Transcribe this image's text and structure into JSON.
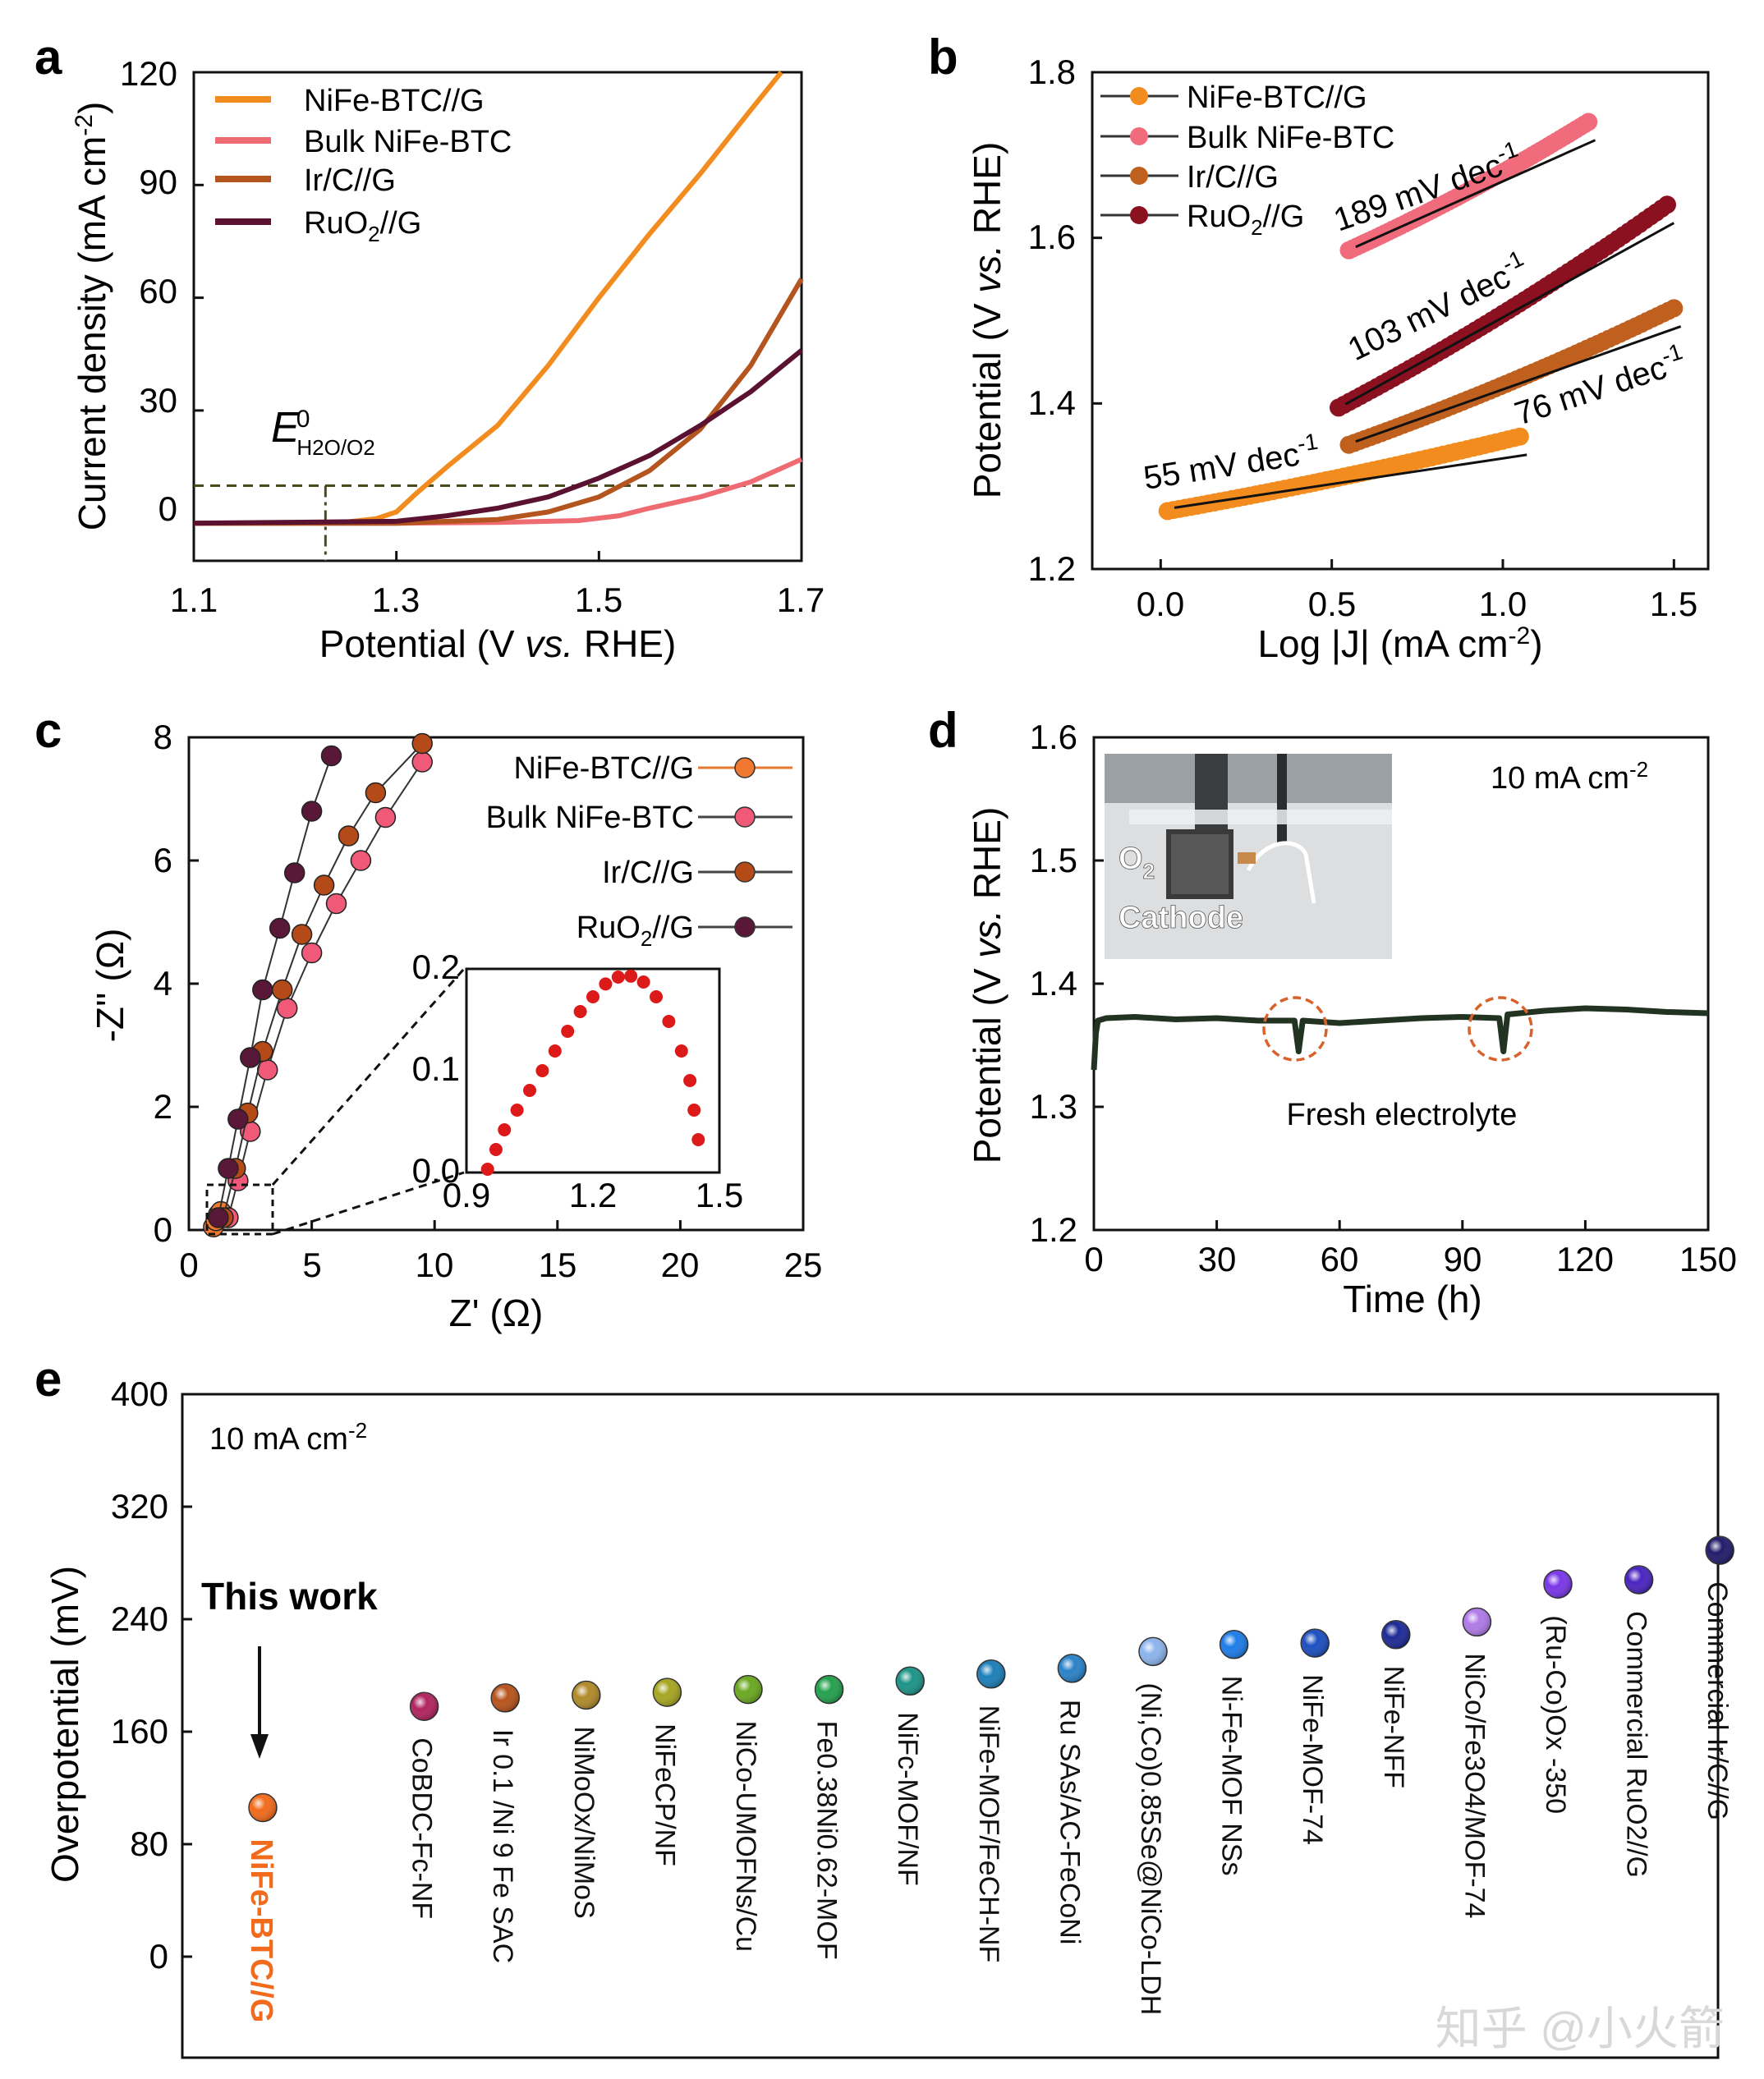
{
  "watermark": "知乎 @小火箭",
  "chart_data": [
    {
      "panel": "a",
      "type": "line",
      "xlabel": "Potential (V vs. RHE)",
      "ylabel": "Current density (mA cm-2)",
      "xlim": [
        1.1,
        1.7
      ],
      "ylim": [
        -10,
        120
      ],
      "xticks": [
        1.1,
        1.3,
        1.5,
        1.7
      ],
      "yticks": [
        0,
        30,
        60,
        90,
        120
      ],
      "reference": {
        "label": "E0 H2O/O2",
        "x": 1.23,
        "y": 10
      },
      "series": [
        {
          "name": "NiFe-BTC//G",
          "color": "#f28c1e",
          "x": [
            1.1,
            1.2,
            1.25,
            1.28,
            1.3,
            1.32,
            1.35,
            1.4,
            1.45,
            1.5,
            1.55,
            1.6,
            1.65,
            1.68
          ],
          "y": [
            0,
            0,
            0.3,
            1.2,
            3,
            8,
            15,
            26,
            42,
            60,
            77,
            93,
            110,
            120
          ]
        },
        {
          "name": "Bulk NiFe-BTC",
          "color": "#ee6b72",
          "x": [
            1.1,
            1.3,
            1.4,
            1.48,
            1.52,
            1.55,
            1.6,
            1.65,
            1.7
          ],
          "y": [
            0,
            0,
            0.2,
            0.7,
            2,
            4,
            7,
            11,
            17
          ]
        },
        {
          "name": "Ir/C//G",
          "color": "#b4541e",
          "x": [
            1.1,
            1.3,
            1.4,
            1.45,
            1.5,
            1.55,
            1.6,
            1.65,
            1.7
          ],
          "y": [
            0,
            0,
            1,
            3,
            7,
            14,
            25,
            42,
            65
          ]
        },
        {
          "name": "RuO2//G",
          "color": "#5a1230",
          "x": [
            1.1,
            1.3,
            1.35,
            1.4,
            1.45,
            1.5,
            1.55,
            1.6,
            1.65,
            1.7
          ],
          "y": [
            0,
            0.5,
            2,
            4,
            7,
            12,
            18,
            26,
            35,
            46
          ]
        }
      ]
    },
    {
      "panel": "b",
      "type": "scatter",
      "xlabel": "Log |J| (mA cm-2)",
      "ylabel": "Potential (V vs. RHE)",
      "xlim": [
        -0.2,
        1.6
      ],
      "ylim": [
        1.2,
        1.8
      ],
      "xticks": [
        0.0,
        0.5,
        1.0,
        1.5
      ],
      "yticks": [
        1.2,
        1.4,
        1.6,
        1.8
      ],
      "series": [
        {
          "name": "NiFe-BTC//G",
          "color": "#f28c1e",
          "x_start": 0.02,
          "x_end": 1.05,
          "y_start": 1.27,
          "y_end": 1.36,
          "slope": "55 mV dec-1"
        },
        {
          "name": "Bulk NiFe-BTC",
          "color": "#f06b7c",
          "x_start": 0.55,
          "x_end": 1.25,
          "y_start": 1.585,
          "y_end": 1.74,
          "slope": "189 mV dec-1"
        },
        {
          "name": "Ir/C//G",
          "color": "#c0601e",
          "x_start": 0.55,
          "x_end": 1.5,
          "y_start": 1.35,
          "y_end": 1.515,
          "slope": "76 mV dec-1"
        },
        {
          "name": "RuO2//G",
          "color": "#8b1020",
          "x_start": 0.52,
          "x_end": 1.48,
          "y_start": 1.395,
          "y_end": 1.64,
          "slope": "103 mV dec-1"
        }
      ]
    },
    {
      "panel": "c",
      "type": "scatter",
      "xlabel": "Z' (Ω)",
      "ylabel": "-Z'' (Ω)",
      "xlim": [
        0,
        25
      ],
      "ylim": [
        0,
        8
      ],
      "xticks": [
        0,
        5,
        10,
        15,
        20,
        25
      ],
      "yticks": [
        0,
        2,
        4,
        6,
        8
      ],
      "series": [
        {
          "name": "NiFe-BTC//G",
          "color": "#f07830",
          "x": [
            1.0,
            1.1,
            1.2,
            1.3
          ],
          "y": [
            0.05,
            0.15,
            0.25,
            0.3
          ]
        },
        {
          "name": "Bulk NiFe-BTC",
          "color": "#f05a78",
          "x": [
            1.6,
            2.0,
            2.5,
            3.2,
            4.0,
            5.0,
            6.0,
            7.0,
            8.0,
            9.5
          ],
          "y": [
            0.2,
            0.8,
            1.6,
            2.6,
            3.6,
            4.5,
            5.3,
            6.0,
            6.7,
            7.6
          ]
        },
        {
          "name": "Ir/C//G",
          "color": "#b44a18",
          "x": [
            1.4,
            1.9,
            2.4,
            3.0,
            3.8,
            4.6,
            5.5,
            6.5,
            7.6,
            9.5
          ],
          "y": [
            0.2,
            1.0,
            1.9,
            2.9,
            3.9,
            4.8,
            5.6,
            6.4,
            7.1,
            7.9
          ]
        },
        {
          "name": "RuO2//G",
          "color": "#5a1838",
          "x": [
            1.2,
            1.6,
            2.0,
            2.5,
            3.0,
            3.7,
            4.3,
            5.0,
            5.8
          ],
          "y": [
            0.2,
            1.0,
            1.8,
            2.8,
            3.9,
            4.9,
            5.8,
            6.8,
            7.7
          ]
        }
      ],
      "inset": {
        "xlim": [
          0.9,
          1.5
        ],
        "ylim": [
          0,
          0.2
        ],
        "xticks": [
          0.9,
          1.2,
          1.5
        ],
        "yticks": [
          0.0,
          0.1,
          0.2
        ],
        "color": "#dd1a1a",
        "x": [
          0.95,
          0.97,
          0.99,
          1.02,
          1.05,
          1.08,
          1.11,
          1.14,
          1.17,
          1.2,
          1.23,
          1.26,
          1.29,
          1.32,
          1.35,
          1.38,
          1.41,
          1.43,
          1.44,
          1.45
        ],
        "y": [
          0.0,
          0.02,
          0.04,
          0.06,
          0.08,
          0.1,
          0.12,
          0.14,
          0.16,
          0.175,
          0.188,
          0.195,
          0.196,
          0.19,
          0.175,
          0.15,
          0.12,
          0.09,
          0.06,
          0.03
        ]
      }
    },
    {
      "panel": "d",
      "type": "line",
      "xlabel": "Time (h)",
      "ylabel": "Potential (V vs. RHE)",
      "xlim": [
        0,
        150
      ],
      "ylim": [
        1.2,
        1.6
      ],
      "xticks": [
        0,
        30,
        60,
        90,
        120,
        150
      ],
      "yticks": [
        1.2,
        1.3,
        1.4,
        1.5,
        1.6
      ],
      "condition": "10 mA cm-2",
      "annotation": "Fresh electrolyte",
      "photo_labels": [
        "O2",
        "Cathode"
      ],
      "series": [
        {
          "name": "",
          "color": "#223322",
          "x": [
            0,
            0.5,
            1,
            3,
            10,
            20,
            30,
            40,
            49,
            50,
            51,
            60,
            70,
            80,
            90,
            99,
            100,
            101,
            110,
            120,
            130,
            140,
            150
          ],
          "y": [
            1.33,
            1.36,
            1.37,
            1.372,
            1.373,
            1.371,
            1.372,
            1.37,
            1.37,
            1.345,
            1.37,
            1.368,
            1.37,
            1.372,
            1.373,
            1.372,
            1.345,
            1.375,
            1.378,
            1.38,
            1.379,
            1.377,
            1.376
          ]
        }
      ]
    },
    {
      "panel": "e",
      "type": "scatter",
      "ylabel": "Overpotential (mV)",
      "ylim": [
        -40,
        400
      ],
      "yticks": [
        0,
        80,
        160,
        240,
        320,
        400
      ],
      "condition": "10 mA cm-2",
      "highlight_label": "This work",
      "points": [
        {
          "label": "NiFe-BTC//G",
          "value": 106,
          "color": "#f26a1b"
        },
        {
          "label": "CoBDC-Fc-NF",
          "value": 178,
          "color": "#b1245e"
        },
        {
          "label": "Ir 0.1 /Ni 9 Fe SAC",
          "value": 184,
          "color": "#b8531c"
        },
        {
          "label": "NiMoOx/NiMoS",
          "value": 186,
          "color": "#b08a2a"
        },
        {
          "label": "NiFeCP/NF",
          "value": 188,
          "color": "#a6a620"
        },
        {
          "label": "NiCo-UMOFNs/Cu",
          "value": 190,
          "color": "#6aa820"
        },
        {
          "label": "Fe0.38Ni0.62-MOF",
          "value": 190,
          "color": "#24a04e"
        },
        {
          "label": "NiFc-MOF/NF",
          "value": 196,
          "color": "#1c9488"
        },
        {
          "label": "NiFe-MOF/FeCH-NF",
          "value": 201,
          "color": "#1c7fb8"
        },
        {
          "label": "Ru SAs/AC-FeCoNi",
          "value": 205,
          "color": "#2a82c8"
        },
        {
          "label": "(Ni,Co)0.85Se@NiCo-LDH",
          "value": 217,
          "color": "#8cb4ec"
        },
        {
          "label": "Ni-Fe-MOF NSs",
          "value": 222,
          "color": "#1e7ce8"
        },
        {
          "label": "NiFe-MOF-74",
          "value": 223,
          "color": "#1c4fc0"
        },
        {
          "label": "NiFe-NFF",
          "value": 229,
          "color": "#1d2a96"
        },
        {
          "label": "NiCo/Fe3O4/MOF-74",
          "value": 238,
          "color": "#b07ae8"
        },
        {
          "label": "(Ru-Co)Ox -350",
          "value": 265,
          "color": "#7a36e8"
        },
        {
          "label": "Commercial RuO2//G",
          "value": 268,
          "color": "#4a24c0"
        },
        {
          "label": "Commercial Ir/C//G",
          "value": 289,
          "color": "#221c6a"
        }
      ]
    }
  ],
  "text": {
    "a": {
      "letter": "a",
      "xlabel_pre": "Potential (V ",
      "xlabel_vs": "vs.",
      "xlabel_post": " RHE)",
      "ylabel_main": "Current density (mA cm",
      "ylabel_sup": "-2",
      "ylabel_end": ")",
      "ref_E": "E",
      "ref_sup": "0",
      "ref_sub": "H2O/O2",
      "legend": [
        "NiFe-BTC//G",
        "Bulk NiFe-BTC",
        "Ir/C//G",
        "RuO"
      ],
      "legend_ru_sub": "2",
      "legend_ru_end": "//G",
      "ticks_x": [
        "1.1",
        "1.3",
        "1.5",
        "1.7"
      ],
      "ticks_y": [
        "0",
        "30",
        "60",
        "90",
        "120"
      ]
    },
    "b": {
      "letter": "b",
      "xlabel_main": "Log |J| (mA cm",
      "xlabel_sup": "-2",
      "xlabel_end": ")",
      "ylabel_pre": "Potential (V ",
      "ylabel_vs": "vs.",
      "ylabel_post": " RHE)",
      "legend": [
        "NiFe-BTC//G",
        "Bulk NiFe-BTC",
        "Ir/C//G",
        "RuO"
      ],
      "legend_ru_sub": "2",
      "legend_ru_end": "//G",
      "slopes": [
        "55 mV dec",
        "189 mV dec",
        "103 mV dec",
        "76 mV dec"
      ],
      "slope_sup": "-1",
      "ticks_x": [
        "0.0",
        "0.5",
        "1.0",
        "1.5"
      ],
      "ticks_y": [
        "1.2",
        "1.4",
        "1.6",
        "1.8"
      ]
    },
    "c": {
      "letter": "c",
      "xlabel": "Z' (Ω)",
      "ylabel": "-Z'' (Ω)",
      "legend": [
        "NiFe-BTC//G",
        "Bulk NiFe-BTC",
        "Ir/C//G",
        "RuO"
      ],
      "legend_ru_sub": "2",
      "legend_ru_end": "//G",
      "ticks_x": [
        "0",
        "5",
        "10",
        "15",
        "20",
        "25"
      ],
      "ticks_y": [
        "0",
        "2",
        "4",
        "6",
        "8"
      ],
      "inset_ticks_x": [
        "0.9",
        "1.2",
        "1.5"
      ],
      "inset_ticks_y": [
        "0.0",
        "0.1",
        "0.2"
      ]
    },
    "d": {
      "letter": "d",
      "xlabel": "Time (h)",
      "ylabel_pre": "Potential (V ",
      "ylabel_vs": "vs.",
      "ylabel_post": " RHE)",
      "cond_main": "10 mA cm",
      "cond_sup": "-2",
      "annotation": "Fresh electrolyte",
      "photo_o": "O",
      "photo_o_sub": "2",
      "photo_cathode": "Cathode",
      "ticks_x": [
        "0",
        "30",
        "60",
        "90",
        "120",
        "150"
      ],
      "ticks_y": [
        "1.2",
        "1.3",
        "1.4",
        "1.5",
        "1.6"
      ]
    },
    "e": {
      "letter": "e",
      "ylabel": "Overpotential (mV)",
      "cond_main": "10 mA cm",
      "cond_sup": "-2",
      "this_work": "This work",
      "ticks_y": [
        "0",
        "80",
        "160",
        "240",
        "320",
        "400"
      ]
    }
  }
}
